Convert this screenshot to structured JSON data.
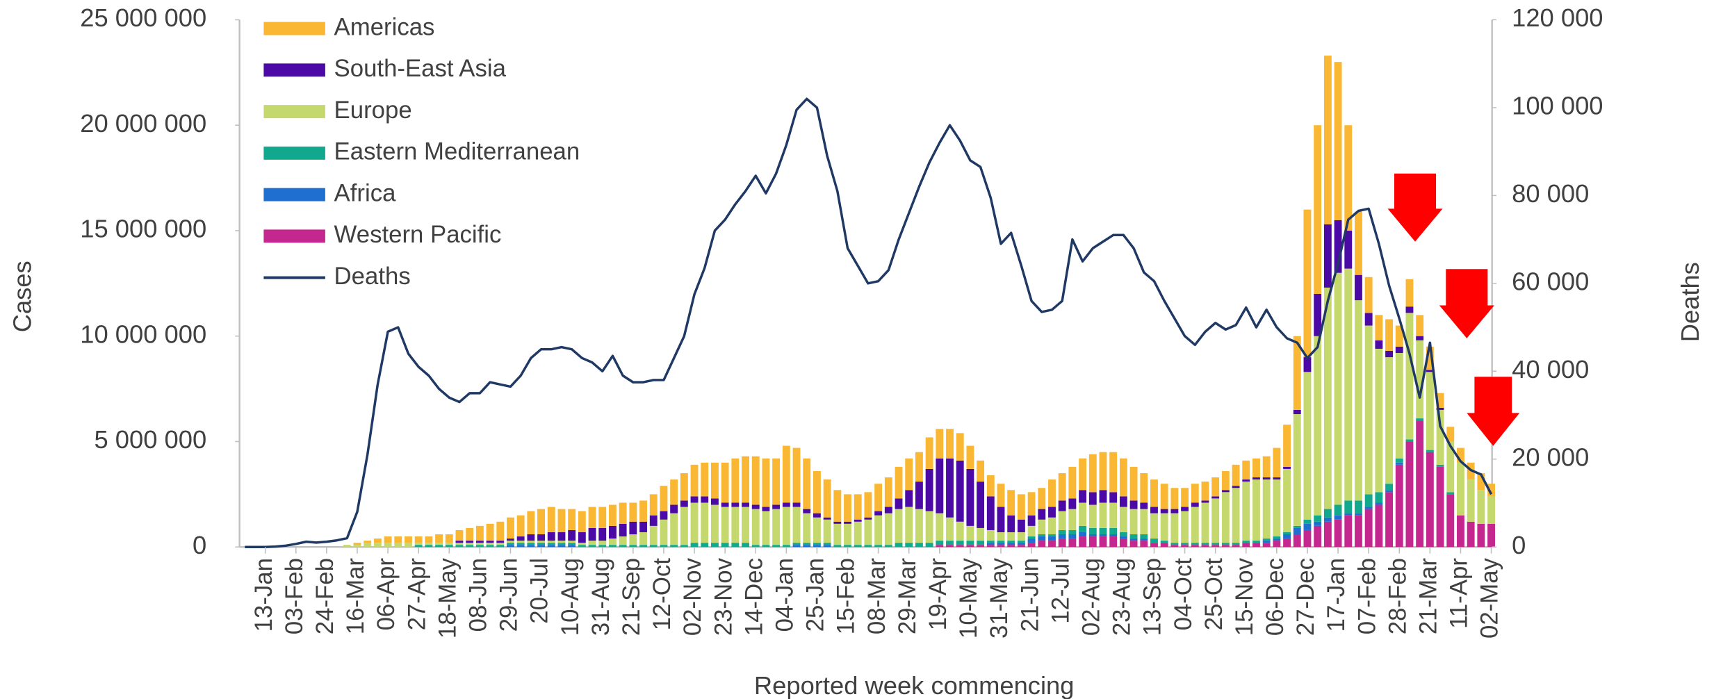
{
  "chart_data": {
    "type": "bar",
    "x_label": "Reported week commencing",
    "y_label": "Cases",
    "y2_label": "Deaths",
    "categories": [
      null,
      null,
      "13-Jan",
      null,
      null,
      "03-Feb",
      null,
      null,
      "24-Feb",
      null,
      null,
      "16-Mar",
      null,
      null,
      "06-Apr",
      null,
      null,
      "27-Apr",
      null,
      null,
      "18-May",
      null,
      null,
      "08-Jun",
      null,
      null,
      "29-Jun",
      null,
      null,
      "20-Jul",
      null,
      null,
      "10-Aug",
      null,
      null,
      "31-Aug",
      null,
      null,
      "21-Sep",
      null,
      null,
      "12-Oct",
      null,
      null,
      "02-Nov",
      null,
      null,
      "23-Nov",
      null,
      null,
      "14-Dec",
      null,
      null,
      "04-Jan",
      null,
      null,
      "25-Jan",
      null,
      null,
      "15-Feb",
      null,
      null,
      "08-Mar",
      null,
      null,
      "29-Mar",
      null,
      null,
      "19-Apr",
      null,
      null,
      "10-May",
      null,
      null,
      "31-May",
      null,
      null,
      "21-Jun",
      null,
      null,
      "12-Jul",
      null,
      null,
      "02-Aug",
      null,
      null,
      "23-Aug",
      null,
      null,
      "13-Sep",
      null,
      null,
      "04-Oct",
      null,
      null,
      "25-Oct",
      null,
      null,
      "15-Nov",
      null,
      null,
      "06-Dec",
      null,
      null,
      "27-Dec",
      null,
      null,
      "17-Jan",
      null,
      null,
      "07-Feb",
      null,
      null,
      "28-Feb",
      null,
      null,
      "21-Mar",
      null,
      null,
      "11-Apr",
      null,
      null,
      "02-May"
    ],
    "ylim": [
      0,
      25000000
    ],
    "yticks": [
      0,
      {
        "value": 5000000,
        "label": "5 000 000"
      },
      {
        "value": 10000000,
        "label": "10 000 000"
      },
      {
        "value": 15000000,
        "label": "15 000 000"
      },
      {
        "value": 20000000,
        "label": "20 000 000"
      },
      {
        "value": 25000000,
        "label": "25 000 000"
      }
    ],
    "y2lim": [
      0,
      120000
    ],
    "y2ticks": [
      0,
      {
        "value": 20000,
        "label": "20 000"
      },
      {
        "value": 40000,
        "label": "40 000"
      },
      {
        "value": 60000,
        "label": "60 000"
      },
      {
        "value": 80000,
        "label": "80 000"
      },
      {
        "value": 100000,
        "label": "100 000"
      },
      {
        "value": 120000,
        "label": "120 000"
      }
    ],
    "stacked": true,
    "legend": "top-left",
    "series": [
      {
        "name": "Americas",
        "color": "#f9b733",
        "values": [
          0,
          0,
          0,
          0,
          0,
          0,
          0,
          0,
          0,
          0,
          0,
          100000,
          100000,
          200000,
          300000,
          300000,
          300000,
          300000,
          300000,
          400000,
          400000,
          500000,
          600000,
          700000,
          800000,
          900000,
          1000000,
          1000000,
          1100000,
          1200000,
          1200000,
          1100000,
          1000000,
          1000000,
          1000000,
          1000000,
          1000000,
          1000000,
          900000,
          1000000,
          1000000,
          1200000,
          1200000,
          1300000,
          1500000,
          1600000,
          1700000,
          1900000,
          2100000,
          2200000,
          2300000,
          2300000,
          2200000,
          2700000,
          2600000,
          2400000,
          2000000,
          1800000,
          1500000,
          1300000,
          1200000,
          1200000,
          1300000,
          1400000,
          1500000,
          1500000,
          1400000,
          1500000,
          1400000,
          1400000,
          1300000,
          1100000,
          1000000,
          1000000,
          1100000,
          1200000,
          1200000,
          1100000,
          1000000,
          1300000,
          1300000,
          1500000,
          1500000,
          1800000,
          1800000,
          1900000,
          1800000,
          1600000,
          1400000,
          1300000,
          1200000,
          1000000,
          900000,
          900000,
          900000,
          900000,
          900000,
          1000000,
          900000,
          900000,
          1000000,
          1400000,
          2000000,
          3500000,
          7000000,
          8000000,
          8000000,
          7500000,
          5000000,
          3000000,
          1700000,
          1200000,
          1500000,
          1000000,
          1300000,
          1000000,
          1100000,
          700000,
          700000,
          700000,
          800000,
          800000,
          600000
        ]
      },
      {
        "name": "South-East Asia",
        "color": "#4b0aa5",
        "values": [
          0,
          0,
          0,
          0,
          0,
          0,
          0,
          0,
          0,
          0,
          0,
          0,
          0,
          0,
          0,
          0,
          0,
          0,
          0,
          0,
          0,
          100000,
          100000,
          100000,
          100000,
          100000,
          100000,
          200000,
          300000,
          300000,
          400000,
          400000,
          500000,
          500000,
          600000,
          600000,
          600000,
          600000,
          600000,
          500000,
          500000,
          400000,
          400000,
          300000,
          300000,
          300000,
          300000,
          200000,
          200000,
          200000,
          200000,
          200000,
          200000,
          200000,
          200000,
          200000,
          200000,
          100000,
          100000,
          100000,
          100000,
          100000,
          200000,
          300000,
          500000,
          800000,
          1300000,
          2000000,
          2600000,
          2800000,
          2900000,
          2700000,
          2200000,
          1600000,
          1200000,
          800000,
          600000,
          500000,
          500000,
          500000,
          500000,
          500000,
          600000,
          600000,
          600000,
          500000,
          500000,
          400000,
          300000,
          300000,
          200000,
          200000,
          200000,
          200000,
          100000,
          100000,
          100000,
          100000,
          100000,
          100000,
          100000,
          100000,
          100000,
          200000,
          700000,
          2000000,
          3000000,
          2500000,
          1800000,
          1200000,
          600000,
          400000,
          300000,
          300000,
          300000,
          200000,
          100000,
          100000,
          0,
          0,
          0,
          0,
          0
        ]
      },
      {
        "name": "Europe",
        "color": "#c5d86d",
        "values": [
          0,
          0,
          0,
          0,
          0,
          0,
          0,
          0,
          0,
          0,
          100000,
          100000,
          200000,
          200000,
          200000,
          200000,
          200000,
          100000,
          100000,
          100000,
          100000,
          100000,
          100000,
          100000,
          100000,
          100000,
          100000,
          100000,
          100000,
          100000,
          100000,
          100000,
          100000,
          100000,
          200000,
          200000,
          300000,
          400000,
          500000,
          600000,
          900000,
          1200000,
          1500000,
          1800000,
          1900000,
          1900000,
          1800000,
          1700000,
          1700000,
          1700000,
          1700000,
          1600000,
          1700000,
          1800000,
          1700000,
          1400000,
          1200000,
          1100000,
          1000000,
          1000000,
          1100000,
          1200000,
          1400000,
          1500000,
          1600000,
          1700000,
          1600000,
          1500000,
          1300000,
          1100000,
          900000,
          700000,
          600000,
          500000,
          400000,
          400000,
          400000,
          500000,
          700000,
          800000,
          900000,
          1000000,
          1100000,
          1100000,
          1200000,
          1200000,
          1200000,
          1200000,
          1200000,
          1200000,
          1300000,
          1400000,
          1500000,
          1700000,
          1900000,
          2100000,
          2400000,
          2600000,
          2800000,
          2900000,
          2800000,
          2700000,
          3000000,
          5300000,
          7000000,
          8500000,
          10500000,
          11000000,
          11000000,
          9500000,
          8000000,
          6800000,
          6000000,
          5000000,
          6000000,
          3700000,
          3700000,
          2600000,
          2400000,
          2500000,
          2000000,
          1600000,
          1300000
        ]
      },
      {
        "name": "Eastern Mediterranean",
        "color": "#11a88d",
        "values": [
          0,
          0,
          0,
          0,
          0,
          0,
          0,
          0,
          0,
          0,
          0,
          0,
          0,
          0,
          0,
          0,
          0,
          100000,
          100000,
          100000,
          100000,
          100000,
          100000,
          100000,
          100000,
          100000,
          100000,
          100000,
          100000,
          100000,
          100000,
          100000,
          100000,
          100000,
          100000,
          100000,
          100000,
          100000,
          100000,
          100000,
          100000,
          100000,
          100000,
          100000,
          200000,
          200000,
          200000,
          200000,
          200000,
          200000,
          100000,
          100000,
          100000,
          100000,
          100000,
          100000,
          100000,
          100000,
          100000,
          100000,
          100000,
          100000,
          100000,
          100000,
          200000,
          200000,
          200000,
          200000,
          200000,
          200000,
          200000,
          200000,
          200000,
          100000,
          100000,
          100000,
          100000,
          100000,
          100000,
          100000,
          200000,
          200000,
          300000,
          300000,
          300000,
          300000,
          200000,
          200000,
          200000,
          200000,
          100000,
          100000,
          100000,
          100000,
          100000,
          100000,
          100000,
          100000,
          100000,
          100000,
          100000,
          100000,
          100000,
          100000,
          200000,
          300000,
          400000,
          500000,
          600000,
          600000,
          600000,
          500000,
          300000,
          200000,
          100000,
          100000,
          100000,
          100000,
          100000,
          0,
          0,
          0,
          0
        ]
      },
      {
        "name": "Africa",
        "color": "#1f6fd1",
        "values": [
          0,
          0,
          0,
          0,
          0,
          0,
          0,
          0,
          0,
          0,
          0,
          0,
          0,
          0,
          0,
          0,
          0,
          0,
          0,
          0,
          0,
          0,
          0,
          0,
          0,
          0,
          100000,
          100000,
          100000,
          100000,
          100000,
          100000,
          100000,
          0,
          0,
          0,
          0,
          0,
          0,
          0,
          0,
          0,
          0,
          0,
          0,
          0,
          0,
          0,
          0,
          0,
          0,
          0,
          0,
          0,
          100000,
          100000,
          100000,
          100000,
          0,
          0,
          0,
          0,
          0,
          0,
          0,
          0,
          0,
          0,
          0,
          0,
          0,
          0,
          0,
          100000,
          100000,
          100000,
          100000,
          200000,
          200000,
          200000,
          200000,
          200000,
          200000,
          100000,
          100000,
          100000,
          100000,
          100000,
          100000,
          0,
          0,
          0,
          0,
          0,
          0,
          0,
          0,
          0,
          0,
          0,
          100000,
          100000,
          200000,
          300000,
          300000,
          200000,
          200000,
          200000,
          100000,
          100000,
          100000,
          100000,
          100000,
          100000,
          0,
          0,
          0,
          0,
          0,
          0,
          0,
          0,
          0
        ]
      },
      {
        "name": "Western Pacific",
        "color": "#c4288f",
        "values": [
          0,
          0,
          0,
          0,
          0,
          0,
          0,
          0,
          0,
          0,
          0,
          0,
          0,
          0,
          0,
          0,
          0,
          0,
          0,
          0,
          0,
          0,
          0,
          0,
          0,
          0,
          0,
          0,
          0,
          0,
          0,
          0,
          0,
          0,
          0,
          0,
          0,
          0,
          0,
          0,
          0,
          0,
          0,
          0,
          0,
          0,
          0,
          0,
          0,
          0,
          0,
          0,
          0,
          0,
          0,
          0,
          0,
          0,
          0,
          0,
          0,
          0,
          0,
          0,
          0,
          0,
          0,
          0,
          100000,
          100000,
          100000,
          100000,
          100000,
          100000,
          100000,
          100000,
          100000,
          200000,
          300000,
          300000,
          400000,
          400000,
          500000,
          500000,
          500000,
          500000,
          400000,
          300000,
          300000,
          200000,
          200000,
          100000,
          100000,
          100000,
          100000,
          100000,
          100000,
          100000,
          200000,
          200000,
          200000,
          300000,
          400000,
          600000,
          800000,
          1000000,
          1200000,
          1300000,
          1500000,
          1500000,
          1800000,
          2000000,
          2600000,
          3900000,
          5000000,
          6000000,
          4500000,
          3800000,
          2500000,
          1500000,
          1200000,
          1100000,
          1100000
        ]
      },
      {
        "name": "Deaths",
        "type": "line",
        "axis": "y2",
        "color": "#1f3864",
        "values": [
          0,
          0,
          0,
          100,
          300,
          700,
          1200,
          1000,
          1200,
          1500,
          2000,
          8000,
          21000,
          37000,
          49000,
          50000,
          44000,
          41000,
          39000,
          36000,
          34000,
          33000,
          35000,
          35000,
          37500,
          37000,
          36500,
          39000,
          43000,
          45000,
          45000,
          45500,
          45000,
          43000,
          42000,
          40000,
          43500,
          39000,
          37500,
          37500,
          38000,
          38000,
          43000,
          48000,
          57500,
          63500,
          72000,
          74500,
          78000,
          81000,
          84500,
          80500,
          85000,
          91500,
          99500,
          102000,
          100000,
          89000,
          81000,
          68000,
          64000,
          60000,
          60500,
          63000,
          70000,
          76000,
          82000,
          87500,
          92000,
          96000,
          92500,
          88000,
          86500,
          79500,
          69000,
          71500,
          64000,
          56000,
          53500,
          54000,
          56000,
          70000,
          65000,
          68000,
          69500,
          71000,
          71000,
          68000,
          62500,
          60500,
          56000,
          52000,
          48000,
          46000,
          49000,
          51000,
          49500,
          50500,
          54500,
          50000,
          54000,
          50000,
          47500,
          46500,
          43000,
          45500,
          56000,
          64500,
          74500,
          76500,
          77000,
          69000,
          59500,
          52000,
          44000,
          34000,
          46500,
          27500,
          23000,
          19500,
          17500,
          16500,
          12000
        ]
      }
    ]
  }
}
